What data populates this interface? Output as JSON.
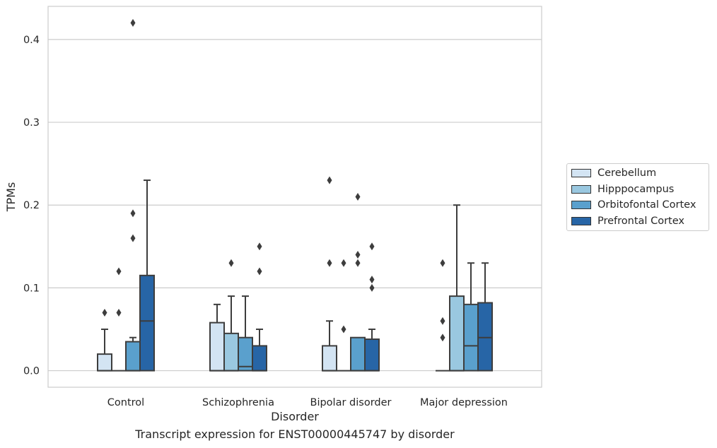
{
  "caption": "Transcript expression for ENST00000445747 by disorder",
  "chart_data": {
    "type": "box",
    "xlabel": "Disorder",
    "ylabel": "TPMs",
    "ylim": [
      -0.02,
      0.44
    ],
    "yticks": [
      0.0,
      0.1,
      0.2,
      0.3,
      0.4
    ],
    "ytick_labels": [
      "0.0",
      "0.1",
      "0.2",
      "0.3",
      "0.4"
    ],
    "grid": "horizontal",
    "legend_position": "right",
    "categories": [
      "Control",
      "Schizophrenia",
      "Bipolar disorder",
      "Major depression"
    ],
    "series": [
      {
        "name": "Cerebellum",
        "color": "#d3e4f3",
        "boxes": [
          {
            "whisker_low": 0,
            "q1": 0,
            "median": 0,
            "q3": 0.02,
            "whisker_high": 0.05,
            "outliers": [
              0.07
            ]
          },
          {
            "whisker_low": 0,
            "q1": 0,
            "median": 0,
            "q3": 0.058,
            "whisker_high": 0.08,
            "outliers": []
          },
          {
            "whisker_low": 0,
            "q1": 0,
            "median": 0,
            "q3": 0.03,
            "whisker_high": 0.06,
            "outliers": [
              0.13,
              0.23
            ]
          },
          {
            "whisker_low": 0,
            "q1": 0,
            "median": 0,
            "q3": 0,
            "whisker_high": 0,
            "outliers": [
              0.04,
              0.06,
              0.13
            ]
          }
        ]
      },
      {
        "name": "Hipppocampus",
        "color": "#9ac8e0",
        "boxes": [
          {
            "whisker_low": 0,
            "q1": 0,
            "median": 0,
            "q3": 0,
            "whisker_high": 0,
            "outliers": [
              0.07,
              0.12
            ]
          },
          {
            "whisker_low": 0,
            "q1": 0,
            "median": 0,
            "q3": 0.045,
            "whisker_high": 0.09,
            "outliers": [
              0.13
            ]
          },
          {
            "whisker_low": 0,
            "q1": 0,
            "median": 0,
            "q3": 0,
            "whisker_high": 0,
            "outliers": [
              0.05,
              0.13
            ]
          },
          {
            "whisker_low": 0,
            "q1": 0,
            "median": 0,
            "q3": 0.09,
            "whisker_high": 0.2,
            "outliers": []
          }
        ]
      },
      {
        "name": "Orbitofontal Cortex",
        "color": "#5aa0cd",
        "boxes": [
          {
            "whisker_low": 0,
            "q1": 0,
            "median": 0,
            "q3": 0.035,
            "whisker_high": 0.04,
            "outliers": [
              0.16,
              0.19,
              0.42
            ]
          },
          {
            "whisker_low": 0,
            "q1": 0,
            "median": 0.005,
            "q3": 0.04,
            "whisker_high": 0.09,
            "outliers": []
          },
          {
            "whisker_low": 0,
            "q1": 0,
            "median": 0,
            "q3": 0.04,
            "whisker_high": 0.04,
            "outliers": [
              0.13,
              0.14,
              0.21
            ]
          },
          {
            "whisker_low": 0,
            "q1": 0,
            "median": 0.03,
            "q3": 0.08,
            "whisker_high": 0.13,
            "outliers": []
          }
        ]
      },
      {
        "name": "Prefrontal Cortex",
        "color": "#2765a6",
        "boxes": [
          {
            "whisker_low": 0,
            "q1": 0,
            "median": 0.06,
            "q3": 0.115,
            "whisker_high": 0.23,
            "outliers": []
          },
          {
            "whisker_low": 0,
            "q1": 0,
            "median": 0,
            "q3": 0.03,
            "whisker_high": 0.05,
            "outliers": [
              0.12,
              0.15
            ]
          },
          {
            "whisker_low": 0,
            "q1": 0,
            "median": 0,
            "q3": 0.038,
            "whisker_high": 0.05,
            "outliers": [
              0.1,
              0.11,
              0.15
            ]
          },
          {
            "whisker_low": 0,
            "q1": 0,
            "median": 0.04,
            "q3": 0.082,
            "whisker_high": 0.13,
            "outliers": []
          }
        ]
      }
    ]
  }
}
